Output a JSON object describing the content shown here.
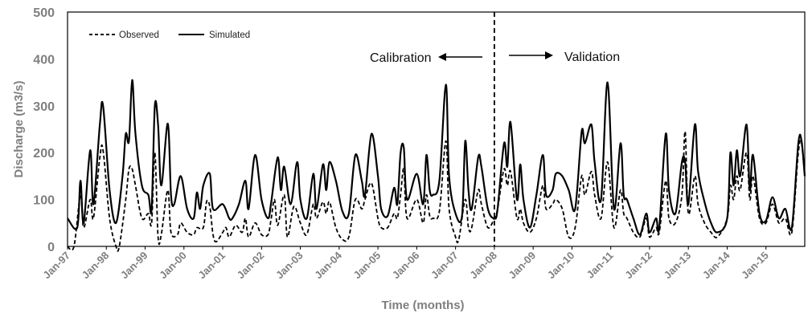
{
  "chart_data": {
    "type": "line",
    "title": "",
    "xlabel": "Time (months)",
    "ylabel": "Discharge (m3/s)",
    "ylim": [
      0,
      500
    ],
    "yticks": [
      "0",
      "100",
      "200",
      "300",
      "400",
      "500"
    ],
    "xlim": [
      "Jan-97",
      "Jan-16"
    ],
    "xticks": [
      "Jan-97",
      "Jan-98",
      "Jan-99",
      "Jan-00",
      "Jan-01",
      "Jan-02",
      "Jan-03",
      "Jan-04",
      "Jan-05",
      "Jan-06",
      "Jan-07",
      "Jan-08",
      "Jan-09",
      "Jan-10",
      "Jan-11",
      "Jan-12",
      "Jan-13",
      "Jan-14",
      "Jan-15"
    ],
    "grid": false,
    "legend_position": "top-left",
    "split_date": "Jan-08",
    "annotations": {
      "calibration": "Calibration",
      "validation": "Validation"
    },
    "series": [
      {
        "name": "Simulated",
        "style": "solid",
        "color": "#000000",
        "points": [
          [
            "Jan-97",
            60
          ],
          [
            "Apr-97",
            40
          ],
          [
            "May-97",
            140
          ],
          [
            "Jun-97",
            50
          ],
          [
            "Aug-97",
            205
          ],
          [
            "Sep-97",
            90
          ],
          [
            "Nov-97",
            260
          ],
          [
            "Dec-97",
            300
          ],
          [
            "Feb-98",
            120
          ],
          [
            "Apr-98",
            50
          ],
          [
            "Jun-98",
            150
          ],
          [
            "Jul-98",
            240
          ],
          [
            "Aug-98",
            225
          ],
          [
            "Sep-98",
            355
          ],
          [
            "Oct-98",
            240
          ],
          [
            "Dec-98",
            130
          ],
          [
            "Feb-99",
            110
          ],
          [
            "Mar-99",
            80
          ],
          [
            "Apr-99",
            300
          ],
          [
            "May-99",
            260
          ],
          [
            "Jun-99",
            130
          ],
          [
            "Aug-99",
            262
          ],
          [
            "Sep-99",
            110
          ],
          [
            "Oct-99",
            90
          ],
          [
            "Dec-99",
            150
          ],
          [
            "Feb-00",
            80
          ],
          [
            "Apr-00",
            60
          ],
          [
            "May-00",
            115
          ],
          [
            "Jun-00",
            80
          ],
          [
            "Jul-00",
            130
          ],
          [
            "Sep-00",
            155
          ],
          [
            "Oct-00",
            80
          ],
          [
            "Jan-01",
            90
          ],
          [
            "Mar-01",
            60
          ],
          [
            "Apr-01",
            60
          ],
          [
            "Jun-01",
            90
          ],
          [
            "Aug-01",
            140
          ],
          [
            "Sep-01",
            80
          ],
          [
            "Nov-01",
            195
          ],
          [
            "Jan-02",
            100
          ],
          [
            "Mar-02",
            60
          ],
          [
            "Apr-02",
            95
          ],
          [
            "Jun-02",
            190
          ],
          [
            "Jul-02",
            120
          ],
          [
            "Aug-02",
            170
          ],
          [
            "Oct-02",
            90
          ],
          [
            "Dec-02",
            180
          ],
          [
            "Jan-03",
            100
          ],
          [
            "Mar-03",
            60
          ],
          [
            "May-03",
            155
          ],
          [
            "Jun-03",
            80
          ],
          [
            "Aug-03",
            175
          ],
          [
            "Sep-03",
            120
          ],
          [
            "Oct-03",
            180
          ],
          [
            "Dec-03",
            140
          ],
          [
            "Feb-04",
            75
          ],
          [
            "Apr-04",
            70
          ],
          [
            "Jun-04",
            195
          ],
          [
            "Aug-04",
            140
          ],
          [
            "Sep-04",
            110
          ],
          [
            "Nov-04",
            240
          ],
          [
            "Jan-05",
            150
          ],
          [
            "Feb-05",
            80
          ],
          [
            "Apr-05",
            65
          ],
          [
            "Jun-05",
            125
          ],
          [
            "Jul-05",
            90
          ],
          [
            "Aug-05",
            200
          ],
          [
            "Sep-05",
            210
          ],
          [
            "Oct-05",
            100
          ],
          [
            "Jan-06",
            155
          ],
          [
            "Mar-06",
            90
          ],
          [
            "Apr-06",
            195
          ],
          [
            "May-06",
            120
          ],
          [
            "Jun-06",
            110
          ],
          [
            "Aug-06",
            140
          ],
          [
            "Oct-06",
            345
          ],
          [
            "Nov-06",
            150
          ],
          [
            "Jan-07",
            70
          ],
          [
            "Mar-07",
            65
          ],
          [
            "Apr-07",
            225
          ],
          [
            "May-07",
            120
          ],
          [
            "Jun-07",
            80
          ],
          [
            "Aug-07",
            190
          ],
          [
            "Sep-07",
            170
          ],
          [
            "Nov-07",
            80
          ],
          [
            "Jan-08",
            60
          ],
          [
            "Feb-08",
            80
          ],
          [
            "Apr-08",
            220
          ],
          [
            "May-08",
            170
          ],
          [
            "Jun-08",
            265
          ],
          [
            "Aug-08",
            100
          ],
          [
            "Sep-08",
            175
          ],
          [
            "Oct-08",
            100
          ],
          [
            "Dec-08",
            40
          ],
          [
            "Feb-09",
            110
          ],
          [
            "Apr-09",
            195
          ],
          [
            "May-09",
            110
          ],
          [
            "Jul-09",
            120
          ],
          [
            "Aug-09",
            155
          ],
          [
            "Oct-09",
            150
          ],
          [
            "Dec-09",
            120
          ],
          [
            "Feb-10",
            80
          ],
          [
            "Apr-10",
            245
          ],
          [
            "May-10",
            220
          ],
          [
            "Jul-10",
            260
          ],
          [
            "Aug-10",
            180
          ],
          [
            "Oct-10",
            100
          ],
          [
            "Dec-10",
            350
          ],
          [
            "Feb-11",
            80
          ],
          [
            "Apr-11",
            220
          ],
          [
            "May-11",
            110
          ],
          [
            "Jun-11",
            100
          ],
          [
            "Aug-11",
            60
          ],
          [
            "Oct-11",
            25
          ],
          [
            "Dec-11",
            70
          ],
          [
            "Jan-12",
            30
          ],
          [
            "Mar-12",
            60
          ],
          [
            "Apr-12",
            40
          ],
          [
            "Jun-12",
            240
          ],
          [
            "Jul-12",
            120
          ],
          [
            "Sep-12",
            70
          ],
          [
            "Nov-12",
            180
          ],
          [
            "Dec-12",
            180
          ],
          [
            "Jan-13",
            90
          ],
          [
            "Mar-13",
            260
          ],
          [
            "Apr-13",
            160
          ],
          [
            "Jun-13",
            95
          ],
          [
            "Aug-13",
            50
          ],
          [
            "Oct-13",
            30
          ],
          [
            "Jan-14",
            60
          ],
          [
            "Feb-14",
            200
          ],
          [
            "Mar-14",
            130
          ],
          [
            "Apr-14",
            205
          ],
          [
            "May-14",
            150
          ],
          [
            "Jul-14",
            260
          ],
          [
            "Aug-14",
            120
          ],
          [
            "Sep-14",
            195
          ],
          [
            "Nov-14",
            70
          ],
          [
            "Jan-15",
            55
          ],
          [
            "Mar-15",
            105
          ],
          [
            "May-15",
            60
          ],
          [
            "Jul-15",
            80
          ],
          [
            "Sep-15",
            40
          ],
          [
            "Nov-15",
            220
          ],
          [
            "Dec-15",
            225
          ],
          [
            "Jan-16",
            150
          ]
        ]
      },
      {
        "name": "Observed",
        "style": "dashed",
        "color": "#000000",
        "points": [
          [
            "Jan-97",
            0
          ],
          [
            "Mar-97",
            0
          ],
          [
            "May-97",
            110
          ],
          [
            "Jun-97",
            40
          ],
          [
            "Aug-97",
            100
          ],
          [
            "Sep-97",
            60
          ],
          [
            "Nov-97",
            190
          ],
          [
            "Dec-97",
            205
          ],
          [
            "Feb-98",
            60
          ],
          [
            "Apr-98",
            0
          ],
          [
            "May-98",
            0
          ],
          [
            "Jul-98",
            100
          ],
          [
            "Aug-98",
            165
          ],
          [
            "Sep-98",
            165
          ],
          [
            "Oct-98",
            130
          ],
          [
            "Dec-98",
            60
          ],
          [
            "Feb-99",
            70
          ],
          [
            "Mar-99",
            50
          ],
          [
            "Apr-99",
            200
          ],
          [
            "May-99",
            20
          ],
          [
            "Jun-99",
            25
          ],
          [
            "Aug-99",
            120
          ],
          [
            "Sep-99",
            30
          ],
          [
            "Nov-99",
            25
          ],
          [
            "Dec-99",
            50
          ],
          [
            "Feb-00",
            30
          ],
          [
            "Apr-00",
            25
          ],
          [
            "May-00",
            40
          ],
          [
            "Jul-00",
            40
          ],
          [
            "Aug-00",
            95
          ],
          [
            "Sep-00",
            85
          ],
          [
            "Oct-00",
            25
          ],
          [
            "Nov-00",
            10
          ],
          [
            "Jan-01",
            30
          ],
          [
            "Feb-01",
            40
          ],
          [
            "Mar-01",
            20
          ],
          [
            "May-01",
            45
          ],
          [
            "Jul-01",
            30
          ],
          [
            "Aug-01",
            60
          ],
          [
            "Sep-01",
            20
          ],
          [
            "Nov-01",
            50
          ],
          [
            "Jan-02",
            25
          ],
          [
            "Mar-02",
            25
          ],
          [
            "Apr-02",
            60
          ],
          [
            "May-02",
            100
          ],
          [
            "Jun-02",
            45
          ],
          [
            "Aug-02",
            110
          ],
          [
            "Sep-02",
            20
          ],
          [
            "Nov-02",
            85
          ],
          [
            "Jan-03",
            50
          ],
          [
            "Mar-03",
            25
          ],
          [
            "May-03",
            90
          ],
          [
            "Jun-03",
            60
          ],
          [
            "Aug-03",
            95
          ],
          [
            "Sep-03",
            70
          ],
          [
            "Oct-03",
            95
          ],
          [
            "Dec-03",
            40
          ],
          [
            "Feb-04",
            15
          ],
          [
            "Apr-04",
            20
          ],
          [
            "Jun-04",
            100
          ],
          [
            "Aug-04",
            80
          ],
          [
            "Sep-04",
            100
          ],
          [
            "Nov-04",
            135
          ],
          [
            "Jan-05",
            60
          ],
          [
            "Feb-05",
            40
          ],
          [
            "Apr-05",
            40
          ],
          [
            "Jun-05",
            70
          ],
          [
            "Jul-05",
            60
          ],
          [
            "Aug-05",
            110
          ],
          [
            "Sep-05",
            165
          ],
          [
            "Oct-05",
            60
          ],
          [
            "Jan-06",
            100
          ],
          [
            "Mar-06",
            50
          ],
          [
            "Apr-06",
            110
          ],
          [
            "May-06",
            65
          ],
          [
            "Jun-06",
            60
          ],
          [
            "Aug-06",
            75
          ],
          [
            "Oct-06",
            225
          ],
          [
            "Nov-06",
            80
          ],
          [
            "Jan-07",
            20
          ],
          [
            "Feb-07",
            15
          ],
          [
            "Apr-07",
            100
          ],
          [
            "May-07",
            40
          ],
          [
            "Jun-07",
            40
          ],
          [
            "Aug-07",
            120
          ],
          [
            "Sep-07",
            90
          ],
          [
            "Nov-07",
            40
          ],
          [
            "Jan-08",
            60
          ],
          [
            "Feb-08",
            80
          ],
          [
            "Apr-08",
            165
          ],
          [
            "May-08",
            130
          ],
          [
            "Jun-08",
            160
          ],
          [
            "Aug-08",
            60
          ],
          [
            "Sep-08",
            80
          ],
          [
            "Oct-08",
            50
          ],
          [
            "Dec-08",
            30
          ],
          [
            "Feb-09",
            60
          ],
          [
            "Apr-09",
            130
          ],
          [
            "May-09",
            80
          ],
          [
            "Jul-09",
            90
          ],
          [
            "Aug-09",
            100
          ],
          [
            "Oct-09",
            80
          ],
          [
            "Dec-09",
            20
          ],
          [
            "Feb-10",
            40
          ],
          [
            "Apr-10",
            150
          ],
          [
            "May-10",
            110
          ],
          [
            "Jul-10",
            160
          ],
          [
            "Aug-10",
            110
          ],
          [
            "Oct-10",
            60
          ],
          [
            "Dec-10",
            180
          ],
          [
            "Feb-11",
            40
          ],
          [
            "Apr-11",
            120
          ],
          [
            "May-11",
            70
          ],
          [
            "Jun-11",
            60
          ],
          [
            "Aug-11",
            30
          ],
          [
            "Oct-11",
            20
          ],
          [
            "Dec-11",
            60
          ],
          [
            "Jan-12",
            20
          ],
          [
            "Mar-12",
            40
          ],
          [
            "Apr-12",
            30
          ],
          [
            "Jun-12",
            140
          ],
          [
            "Jul-12",
            60
          ],
          [
            "Sep-12",
            50
          ],
          [
            "Nov-12",
            110
          ],
          [
            "Dec-12",
            245
          ],
          [
            "Jan-13",
            70
          ],
          [
            "Mar-13",
            150
          ],
          [
            "Apr-13",
            90
          ],
          [
            "Jun-13",
            50
          ],
          [
            "Aug-13",
            30
          ],
          [
            "Oct-13",
            20
          ],
          [
            "Jan-14",
            60
          ],
          [
            "Feb-14",
            130
          ],
          [
            "Mar-14",
            100
          ],
          [
            "Apr-14",
            150
          ],
          [
            "May-14",
            120
          ],
          [
            "Jul-14",
            200
          ],
          [
            "Aug-14",
            100
          ],
          [
            "Sep-14",
            150
          ],
          [
            "Nov-14",
            60
          ],
          [
            "Jan-15",
            50
          ],
          [
            "Mar-15",
            90
          ],
          [
            "May-15",
            50
          ],
          [
            "Jul-15",
            60
          ],
          [
            "Sep-15",
            30
          ],
          [
            "Nov-15",
            200
          ],
          [
            "Dec-15",
            220
          ],
          [
            "Jan-16",
            150
          ]
        ]
      }
    ]
  }
}
